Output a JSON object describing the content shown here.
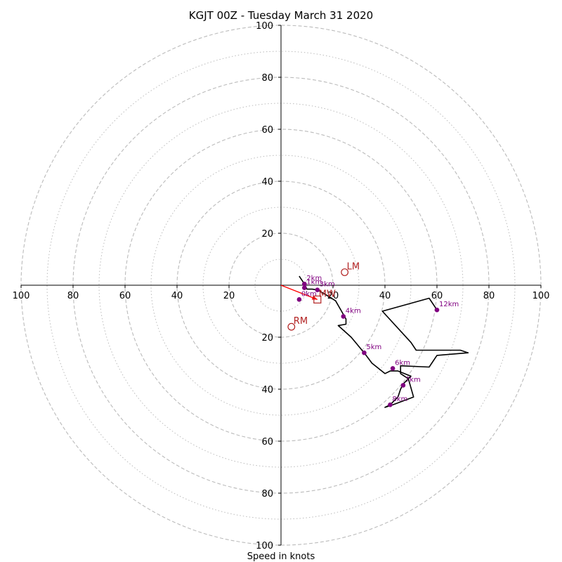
{
  "chart_data": {
    "type": "hodograph",
    "title": "KGJT 00Z - Tuesday March 31 2020",
    "xlabel": "Speed in knots",
    "range": [
      -100,
      100
    ],
    "rings_major": [
      20,
      40,
      60,
      80,
      100
    ],
    "rings_minor": [
      10,
      30,
      50,
      70,
      90
    ],
    "x_ticks": [
      "100",
      "80",
      "60",
      "40",
      "20",
      "20",
      "40",
      "60",
      "80",
      "100"
    ],
    "y_ticks": [
      "100",
      "80",
      "60",
      "40",
      "20",
      "20",
      "40",
      "60",
      "80",
      "100"
    ],
    "colors": {
      "trace": "#000000",
      "height_points": "#800080",
      "motion": "#b22222",
      "shear_vector": "#ff0000",
      "rings": "#bbbbbb"
    },
    "trace": [
      [
        7,
        3.5
      ],
      [
        9,
        0.5
      ],
      [
        10,
        -1.5
      ],
      [
        12,
        -1.5
      ],
      [
        14,
        -1.8
      ],
      [
        17,
        -3.5
      ],
      [
        21,
        -6
      ],
      [
        23,
        -9.5
      ],
      [
        25,
        -13
      ],
      [
        25,
        -15
      ],
      [
        22,
        -15.5
      ],
      [
        27,
        -20
      ],
      [
        32,
        -26
      ],
      [
        35,
        -30
      ],
      [
        40,
        -34
      ],
      [
        42,
        -33
      ],
      [
        45,
        -33
      ],
      [
        50,
        -35
      ],
      [
        47,
        -38
      ],
      [
        46,
        -40
      ],
      [
        45,
        -43
      ],
      [
        42,
        -46
      ],
      [
        40,
        -47
      ],
      [
        43,
        -46
      ],
      [
        51,
        -43
      ],
      [
        49,
        -36
      ],
      [
        46,
        -34
      ],
      [
        46,
        -31
      ],
      [
        57,
        -31.5
      ],
      [
        60,
        -27
      ],
      [
        72,
        -26
      ],
      [
        69,
        -25
      ],
      [
        52,
        -25
      ],
      [
        50,
        -22
      ],
      [
        39,
        -10
      ],
      [
        57,
        -5
      ],
      [
        60,
        -9.5
      ]
    ],
    "height_points": [
      {
        "label": "0km",
        "u": 7,
        "v": -5.5
      },
      {
        "label": "1km",
        "u": 9,
        "v": -1
      },
      {
        "label": "2km",
        "u": 9,
        "v": 0.5
      },
      {
        "label": "3km",
        "u": 14,
        "v": -1.8
      },
      {
        "label": "4km",
        "u": 24,
        "v": -12
      },
      {
        "label": "5km",
        "u": 32,
        "v": -26
      },
      {
        "label": "6km",
        "u": 43,
        "v": -32
      },
      {
        "label": "7km",
        "u": 47,
        "v": -38.5
      },
      {
        "label": "8km",
        "u": 42,
        "v": -46
      },
      {
        "label": "12km",
        "u": 60,
        "v": -9.5
      }
    ],
    "storm_motions": [
      {
        "label": "LM",
        "u": 24.5,
        "v": 5
      },
      {
        "label": "RM",
        "u": 4,
        "v": -16
      }
    ],
    "mean_wind": {
      "label": "MW",
      "u": 14,
      "v": -5.5
    },
    "shear_vector": {
      "from": [
        0,
        0
      ],
      "to": [
        14,
        -5.5
      ]
    }
  }
}
